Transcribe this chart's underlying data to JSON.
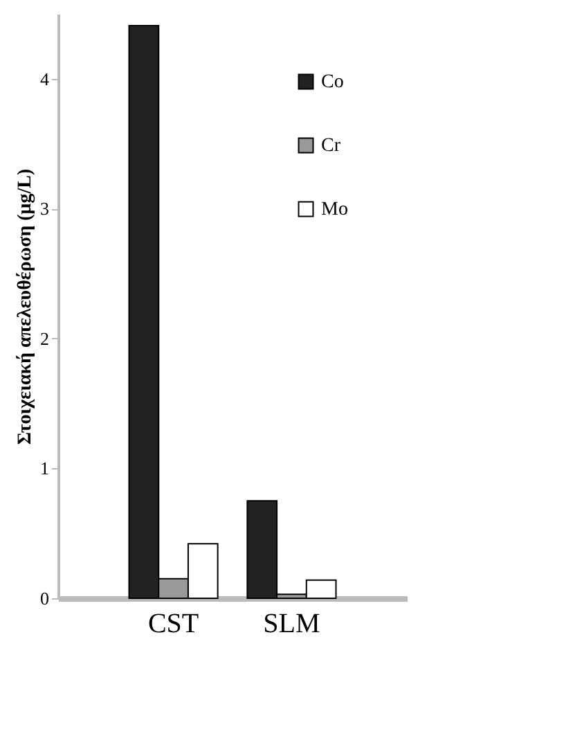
{
  "chart_data": {
    "type": "bar",
    "ylabel": "Στοιχειακή απελευθέρωση (μg/L)",
    "categories": [
      "CST",
      "SLM"
    ],
    "series": [
      {
        "name": "Co",
        "color": "#222222",
        "values": [
          4.41,
          0.75
        ]
      },
      {
        "name": "Cr",
        "color": "#999999",
        "values": [
          0.15,
          0.03
        ]
      },
      {
        "name": "Mo",
        "color": "#ffffff",
        "values": [
          0.42,
          0.14
        ]
      }
    ],
    "ylim": [
      0,
      4.5
    ],
    "yticks": [
      0,
      1,
      2,
      3,
      4
    ],
    "legend": "top right",
    "grid": false
  }
}
